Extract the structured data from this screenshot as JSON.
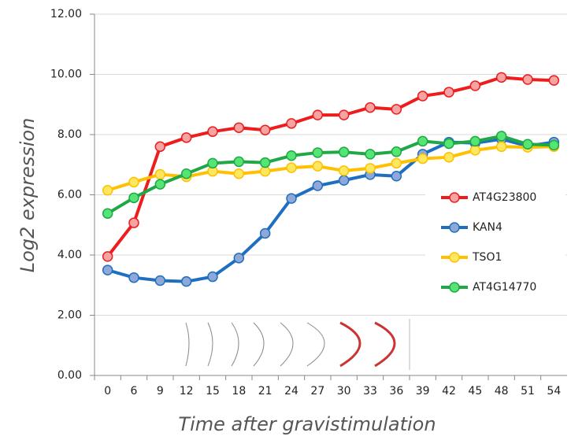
{
  "chart_data": {
    "type": "line",
    "x_label": "Time after gravistimulation",
    "y_label": "Log2 expression",
    "categories": [
      "0",
      "6",
      "9",
      "12",
      "15",
      "18",
      "21",
      "24",
      "27",
      "30",
      "33",
      "36",
      "39",
      "42",
      "45",
      "48",
      "51",
      "54"
    ],
    "ylim": [
      0,
      12
    ],
    "yticks": [
      {
        "value": 0,
        "label": "0.00"
      },
      {
        "value": 2,
        "label": "2.00"
      },
      {
        "value": 4,
        "label": "4.00"
      },
      {
        "value": 6,
        "label": "6.00"
      },
      {
        "value": 8,
        "label": "8.00"
      },
      {
        "value": 10,
        "label": "10.00"
      },
      {
        "value": 12,
        "label": "12.00"
      }
    ],
    "grid": true,
    "legend": "right",
    "series": [
      {
        "name": "AT4G23800",
        "color": "#ee1c1c",
        "marker_color": "#f5a3a3",
        "values": [
          3.95,
          5.07,
          7.6,
          7.9,
          8.1,
          8.23,
          8.15,
          8.37,
          8.65,
          8.65,
          8.9,
          8.84,
          9.28,
          9.41,
          9.62,
          9.9,
          9.83,
          9.8
        ]
      },
      {
        "name": "KAN4",
        "color": "#1f6fc0",
        "marker_color": "#8fa8d8",
        "values": [
          3.5,
          3.25,
          3.15,
          3.12,
          3.28,
          3.9,
          4.72,
          5.88,
          6.3,
          6.48,
          6.67,
          6.62,
          7.35,
          7.75,
          7.72,
          7.85,
          7.62,
          7.75
        ]
      },
      {
        "name": "TSO1",
        "color": "#ffc000",
        "marker_color": "#ffe860",
        "values": [
          6.15,
          6.42,
          6.68,
          6.6,
          6.78,
          6.7,
          6.78,
          6.9,
          6.95,
          6.8,
          6.88,
          7.05,
          7.2,
          7.25,
          7.48,
          7.6,
          7.58,
          7.6
        ]
      },
      {
        "name": "AT4G14770",
        "color": "#1fa845",
        "marker_color": "#55e575",
        "values": [
          5.38,
          5.9,
          6.35,
          6.7,
          7.05,
          7.1,
          7.07,
          7.3,
          7.4,
          7.42,
          7.35,
          7.43,
          7.78,
          7.7,
          7.78,
          7.95,
          7.68,
          7.65
        ]
      }
    ]
  }
}
